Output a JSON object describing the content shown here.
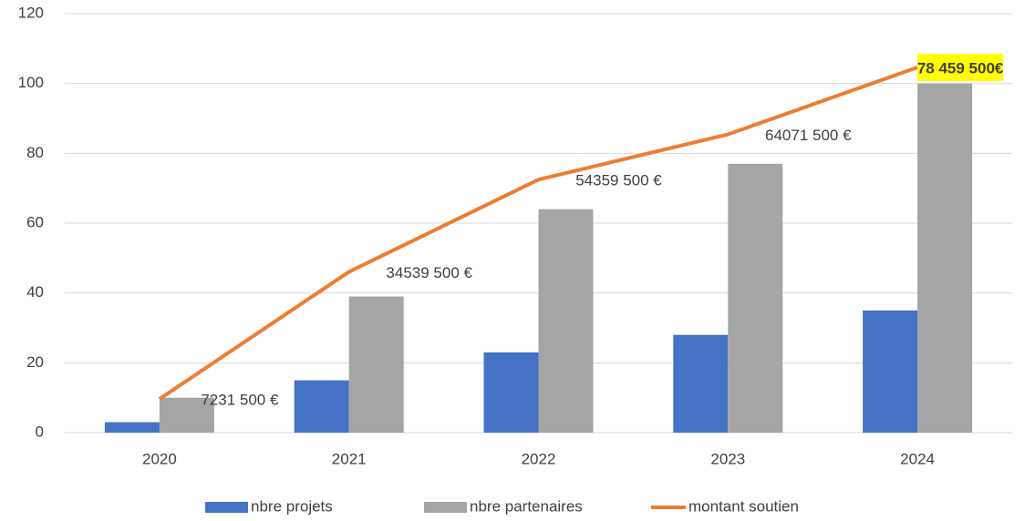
{
  "chart_data": {
    "type": "bar",
    "categories": [
      "2020",
      "2021",
      "2022",
      "2023",
      "2024"
    ],
    "series": [
      {
        "name": "nbre projets",
        "color": "#4472c4",
        "values": [
          3,
          15,
          23,
          28,
          35
        ]
      },
      {
        "name": "nbre partenaires",
        "color": "#a5a5a5",
        "values": [
          10,
          39,
          64,
          77,
          100
        ]
      },
      {
        "name": "montant soutien",
        "type": "line",
        "axis": "y2",
        "color": "#ed7d31",
        "values": [
          7231500,
          34539500,
          54359500,
          64071500,
          78459500
        ],
        "value_labels": [
          "7231 500 €",
          "34539 500 €",
          "54359 500 €",
          "64071 500 €",
          "78 459 500€"
        ]
      }
    ],
    "ylim": [
      0,
      120
    ],
    "yticks": [
      0,
      20,
      40,
      60,
      80,
      100,
      120
    ],
    "y2lim": [
      0,
      90000000
    ],
    "grid": true,
    "legend": "bottom"
  }
}
